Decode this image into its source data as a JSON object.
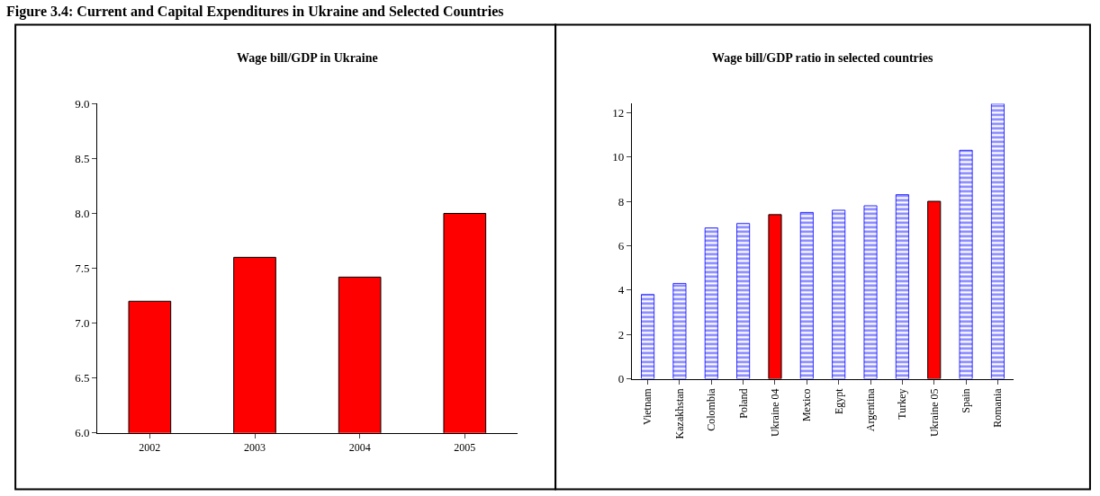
{
  "chart_data": [
    {
      "type": "bar",
      "title": "Wage bill/GDP in Ukraine",
      "annotations": [
        "Figure 3.4: Current and Capital Expenditures in Ukraine and Selected Countries"
      ],
      "categories": [
        "2002",
        "2003",
        "2004",
        "2005"
      ],
      "values": [
        7.2,
        7.6,
        7.42,
        8.0
      ],
      "color": "#ff0000",
      "ylim": [
        6.0,
        9.0
      ],
      "yticks": [
        {
          "value": 6.0,
          "label": "6.0"
        },
        {
          "value": 6.5,
          "label": "6.5"
        },
        {
          "value": 7.0,
          "label": "7.0"
        },
        {
          "value": 7.5,
          "label": "7.5"
        },
        {
          "value": 8.0,
          "label": "8.0"
        },
        {
          "value": 8.5,
          "label": "8.5"
        },
        {
          "value": 9.0,
          "label": "9.0"
        }
      ]
    },
    {
      "type": "bar",
      "title": "Wage bill/GDP ratio in selected countries",
      "categories": [
        "Vietnam",
        "Kazakhstan",
        "Colombia",
        "Poland",
        "Ukraine 04",
        "Mexico",
        "Egypt",
        "Argentina",
        "Turkey",
        "Ukraine 05",
        "Spain",
        "Romania"
      ],
      "values": [
        3.8,
        4.3,
        6.8,
        7.0,
        7.4,
        7.5,
        7.6,
        7.8,
        8.3,
        8.0,
        10.3,
        12.4
      ],
      "colors": [
        "#0000ff",
        "#0000ff",
        "#0000ff",
        "#0000ff",
        "#ff0000",
        "#0000ff",
        "#0000ff",
        "#0000ff",
        "#0000ff",
        "#ff0000",
        "#0000ff",
        "#0000ff"
      ],
      "ylim": [
        0,
        12.4
      ],
      "yticks": [
        0,
        2,
        4,
        6,
        8,
        10,
        12
      ]
    }
  ]
}
